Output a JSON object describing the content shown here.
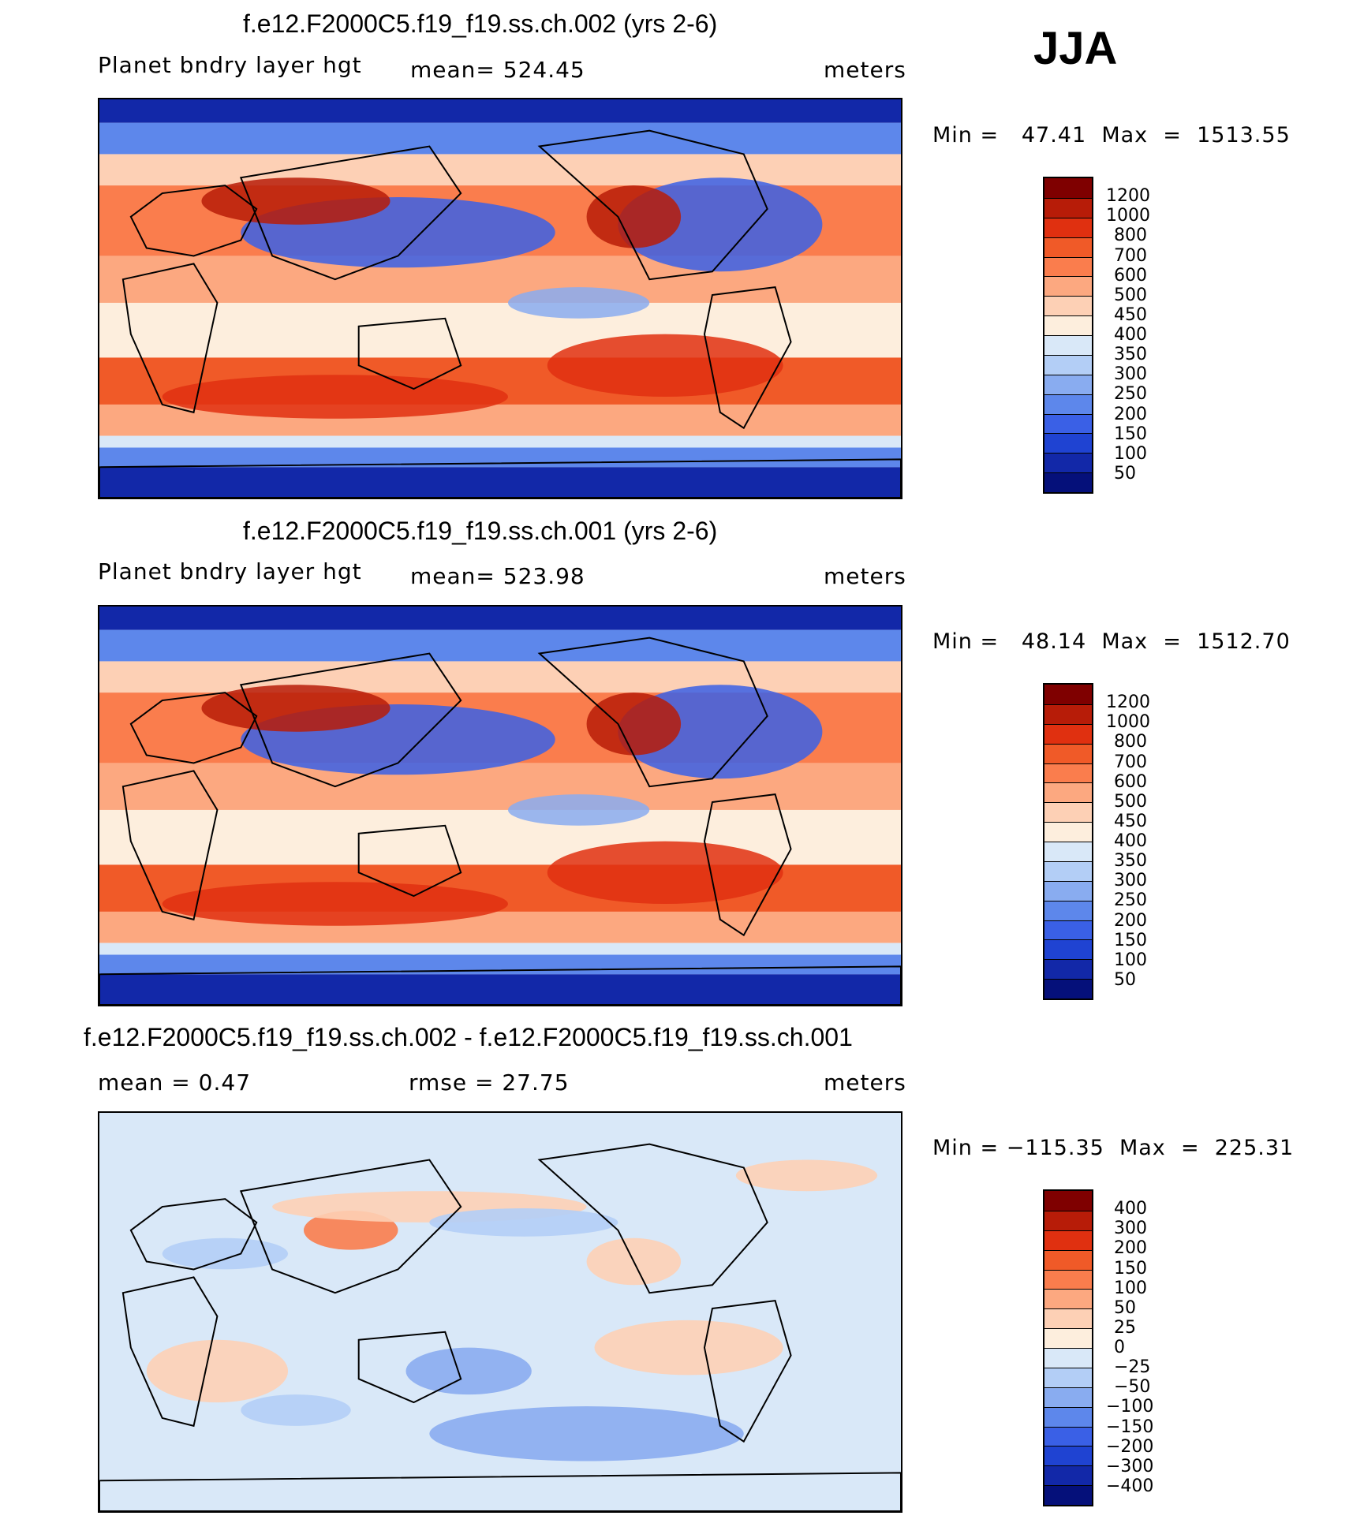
{
  "season": "JJA",
  "panels": [
    {
      "title": "f.e12.F2000C5.f19_f19.ss.ch.002 (yrs 2-6)",
      "variable": "Planet bndry layer hgt",
      "stat": "mean= 524.45",
      "units": "meters",
      "minmax": "Min =   47.41  Max  =  1513.55",
      "scale": "abs"
    },
    {
      "title": "f.e12.F2000C5.f19_f19.ss.ch.001 (yrs 2-6)",
      "variable": "Planet bndry layer hgt",
      "stat": "mean= 523.98",
      "units": "meters",
      "minmax": "Min =   48.14  Max  =  1512.70",
      "scale": "abs"
    },
    {
      "title": "f.e12.F2000C5.f19_f19.ss.ch.002 - f.e12.F2000C5.f19_f19.ss.ch.001",
      "variable": "mean =    0.47",
      "stat": "rmse =   27.75",
      "units": "meters",
      "minmax": "Min = −115.35  Max  =  225.31",
      "scale": "diff"
    }
  ],
  "colorbars": {
    "abs": {
      "levels": [
        "1200",
        "1000",
        "800",
        "700",
        "600",
        "500",
        "450",
        "400",
        "350",
        "300",
        "250",
        "200",
        "150",
        "100",
        "50"
      ],
      "colors": [
        "#7f0000",
        "#b71c08",
        "#e03010",
        "#f05a28",
        "#fa7d4d",
        "#fca880",
        "#fdd0b5",
        "#fdeedd",
        "#d9e8f8",
        "#b3cef6",
        "#89acf0",
        "#5d87eb",
        "#3a60e6",
        "#1f43d2",
        "#1228a8",
        "#05107a"
      ]
    },
    "diff": {
      "levels": [
        "400",
        "300",
        "200",
        "150",
        "100",
        "50",
        "25",
        "0",
        "−25",
        "−50",
        "−100",
        "−150",
        "−200",
        "−300",
        "−400"
      ],
      "colors": [
        "#7f0000",
        "#b71c08",
        "#e03010",
        "#f05a28",
        "#fa7d4d",
        "#fca880",
        "#fdd0b5",
        "#fdeedd",
        "#d9e8f8",
        "#b3cef6",
        "#89acf0",
        "#5d87eb",
        "#3a60e6",
        "#1f43d2",
        "#1228a8",
        "#05107a"
      ]
    }
  }
}
